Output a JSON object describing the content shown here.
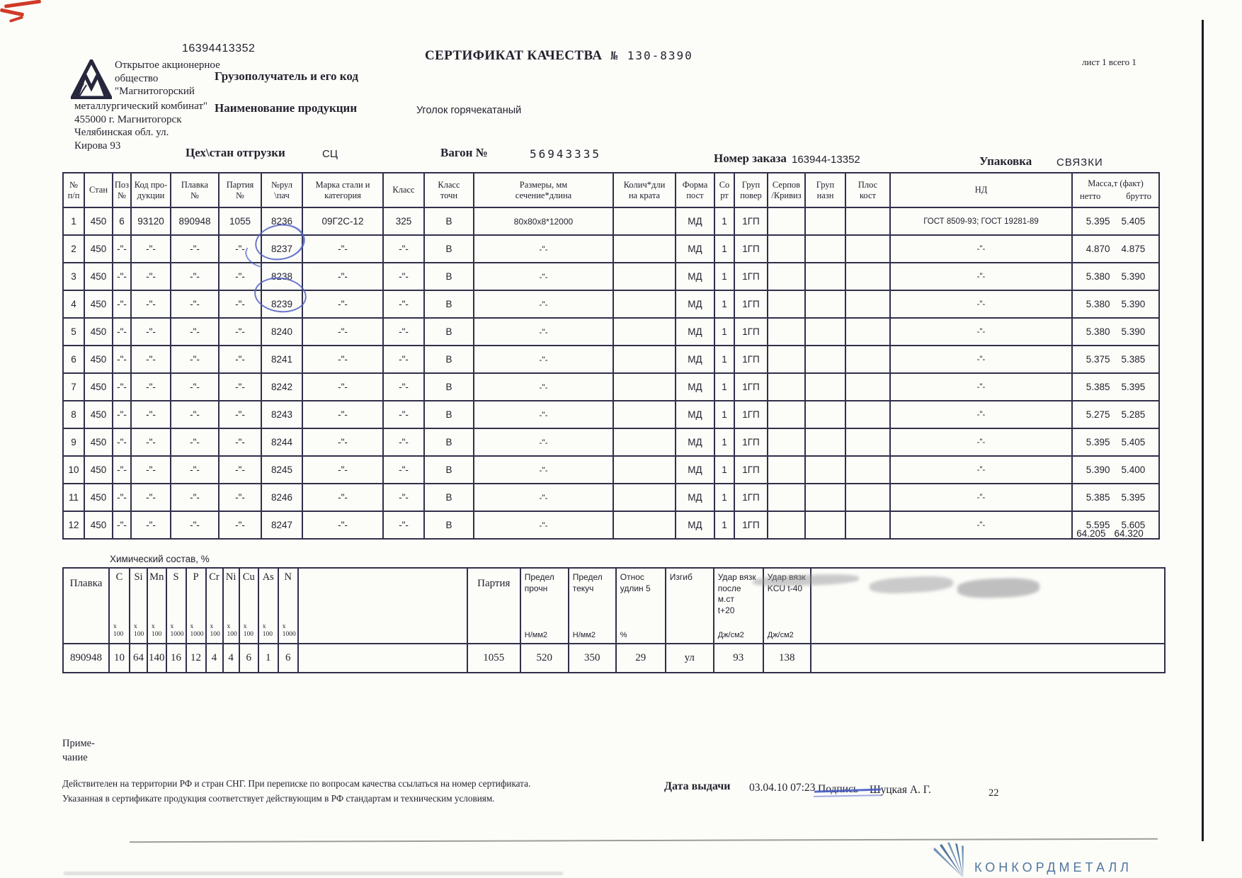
{
  "page": {
    "doc_number_top": "16394413352",
    "sheet_info": "лист 1 всего 1",
    "title": "СЕРТИФИКАТ КАЧЕСТВА",
    "title_number": "№ 130-8390",
    "page_number": "22"
  },
  "company": {
    "block1": "Открытое акционерное\nобщество\n\"Магнитогорский",
    "block2": "металлургический комбинат\"\n455000 г. Магнитогорск\nЧелябинская обл.  ул.\nКирова 93"
  },
  "fields": {
    "consignee_label": "Грузополучатель и его код",
    "product_label": "Наименование продукции",
    "product_value": "Уголок горячекатаный",
    "shop_label": "Цех\\стан отгрузки",
    "shop_value": "СЦ",
    "wagon_label": "Вагон №",
    "wagon_value": "56943335",
    "order_label": "Номер заказа",
    "order_value": "163944-13352",
    "packing_label": "Упаковка",
    "packing_value": "СВЯЗКИ"
  },
  "main_table": {
    "headers": [
      "№\nп/п",
      "Стан",
      "Поз\n№",
      "Код про-\nдукции",
      "Плавка\n№",
      "Партия\n№",
      "№рул\n\\пач",
      "Марка стали и\nкатегория",
      "Класс",
      "Класс\nточн",
      "Размеры, мм\nсечение*длина",
      "Колич*дли\nна крата",
      "Форма\nпост",
      "Со\nрт",
      "Груп\nповер",
      "Серпов\n/Кривиз",
      "Груп\nназн",
      "Плос\nкост",
      "НД",
      "Масса,т (факт)"
    ],
    "mass_subheaders": [
      "нетто",
      "брутто"
    ],
    "rows": [
      [
        "1",
        "450",
        "6",
        "93120",
        "890948",
        "1055",
        "8236",
        "09Г2С-12",
        "325",
        "В",
        "80x80x8*12000",
        "",
        "МД",
        "1",
        "1ГП",
        "",
        "",
        "",
        "ГОСТ 8509-93; ГОСТ 19281-89",
        "5.395",
        "5.405"
      ],
      [
        "2",
        "450",
        "-\"-",
        "-\"-",
        "-\"-",
        "-\"-",
        "8237",
        "-\"-",
        "-\"-",
        "В",
        "-\"-",
        "",
        "МД",
        "1",
        "1ГП",
        "",
        "",
        "",
        "-\"-",
        "4.870",
        "4.875"
      ],
      [
        "3",
        "450",
        "-\"-",
        "-\"-",
        "-\"-",
        "-\"-",
        "8238",
        "-\"-",
        "-\"-",
        "В",
        "-\"-",
        "",
        "МД",
        "1",
        "1ГП",
        "",
        "",
        "",
        "-\"-",
        "5.380",
        "5.390"
      ],
      [
        "4",
        "450",
        "-\"-",
        "-\"-",
        "-\"-",
        "-\"-",
        "8239",
        "-\"-",
        "-\"-",
        "В",
        "-\"-",
        "",
        "МД",
        "1",
        "1ГП",
        "",
        "",
        "",
        "-\"-",
        "5.380",
        "5.390"
      ],
      [
        "5",
        "450",
        "-\"-",
        "-\"-",
        "-\"-",
        "-\"-",
        "8240",
        "-\"-",
        "-\"-",
        "В",
        "-\"-",
        "",
        "МД",
        "1",
        "1ГП",
        "",
        "",
        "",
        "-\"-",
        "5.380",
        "5.390"
      ],
      [
        "6",
        "450",
        "-\"-",
        "-\"-",
        "-\"-",
        "-\"-",
        "8241",
        "-\"-",
        "-\"-",
        "В",
        "-\"-",
        "",
        "МД",
        "1",
        "1ГП",
        "",
        "",
        "",
        "-\"-",
        "5.375",
        "5.385"
      ],
      [
        "7",
        "450",
        "-\"-",
        "-\"-",
        "-\"-",
        "-\"-",
        "8242",
        "-\"-",
        "-\"-",
        "В",
        "-\"-",
        "",
        "МД",
        "1",
        "1ГП",
        "",
        "",
        "",
        "-\"-",
        "5.385",
        "5.395"
      ],
      [
        "8",
        "450",
        "-\"-",
        "-\"-",
        "-\"-",
        "-\"-",
        "8243",
        "-\"-",
        "-\"-",
        "В",
        "-\"-",
        "",
        "МД",
        "1",
        "1ГП",
        "",
        "",
        "",
        "-\"-",
        "5.275",
        "5.285"
      ],
      [
        "9",
        "450",
        "-\"-",
        "-\"-",
        "-\"-",
        "-\"-",
        "8244",
        "-\"-",
        "-\"-",
        "В",
        "-\"-",
        "",
        "МД",
        "1",
        "1ГП",
        "",
        "",
        "",
        "-\"-",
        "5.395",
        "5.405"
      ],
      [
        "10",
        "450",
        "-\"-",
        "-\"-",
        "-\"-",
        "-\"-",
        "8245",
        "-\"-",
        "-\"-",
        "В",
        "-\"-",
        "",
        "МД",
        "1",
        "1ГП",
        "",
        "",
        "",
        "-\"-",
        "5.390",
        "5.400"
      ],
      [
        "11",
        "450",
        "-\"-",
        "-\"-",
        "-\"-",
        "-\"-",
        "8246",
        "-\"-",
        "-\"-",
        "В",
        "-\"-",
        "",
        "МД",
        "1",
        "1ГП",
        "",
        "",
        "",
        "-\"-",
        "5.385",
        "5.395"
      ],
      [
        "12",
        "450",
        "-\"-",
        "-\"-",
        "-\"-",
        "-\"-",
        "8247",
        "-\"-",
        "-\"-",
        "В",
        "-\"-",
        "",
        "МД",
        "1",
        "1ГП",
        "",
        "",
        "",
        "-\"-",
        "5.595",
        "5.605"
      ]
    ],
    "totals": [
      "64.205",
      "64.320"
    ]
  },
  "chem_table": {
    "title": "Химический состав, %",
    "melt_header": "Плавка",
    "elements": [
      {
        "symbol": "C",
        "mult": "x\n100"
      },
      {
        "symbol": "Si",
        "mult": "x\n100"
      },
      {
        "symbol": "Mn",
        "mult": "x\n100"
      },
      {
        "symbol": "S",
        "mult": "x\n1000"
      },
      {
        "symbol": "P",
        "mult": "x\n1000"
      },
      {
        "symbol": "Cr",
        "mult": "x\n100"
      },
      {
        "symbol": "Ni",
        "mult": "x\n100"
      },
      {
        "symbol": "Cu",
        "mult": "x\n100"
      },
      {
        "symbol": "As",
        "mult": "x\n100"
      },
      {
        "symbol": "N",
        "mult": "x\n1000"
      }
    ],
    "melt_value": "890948",
    "element_values": [
      "10",
      "64",
      "140",
      "16",
      "12",
      "4",
      "4",
      "6",
      "1",
      "6"
    ],
    "batch_header": "Партия",
    "batch_value": "1055",
    "mech_columns": [
      {
        "label": "Предел\nпрочн",
        "unit": "Н/мм2",
        "value": "520"
      },
      {
        "label": "Предел\nтекуч",
        "unit": "Н/мм2",
        "value": "350"
      },
      {
        "label": "Относ\nудлин 5",
        "unit": "%",
        "value": "29"
      },
      {
        "label": "Изгиб",
        "unit": "",
        "value": "ул"
      },
      {
        "label": "Удар вязк\nпосле м.ст\nt+20",
        "unit": "Дж/см2",
        "value": "93"
      },
      {
        "label": "Удар вязк\nKCU t-40",
        "unit": "Дж/см2",
        "value": "138"
      }
    ]
  },
  "notes": {
    "note_label": "Приме-\nчание",
    "line1": "Действителен на территории РФ и стран СНГ. При переписке по вопросам качества ссылаться на номер сертификата.",
    "line2": "Указанная в сертификате продукция соответствует действующим в РФ стандартам и техническим условиям."
  },
  "footer": {
    "date_label": "Дата выдачи",
    "date_value": "03.04.10 07:23",
    "sign_label": "Подпись",
    "sign_value": "Шуцкая А. Г.",
    "brand": "КОНКОРДМЕТАЛЛ"
  },
  "colors": {
    "pen_blue": "#5262c4",
    "brand_blue": "#51779f",
    "red_mark": "#cf3a28"
  }
}
